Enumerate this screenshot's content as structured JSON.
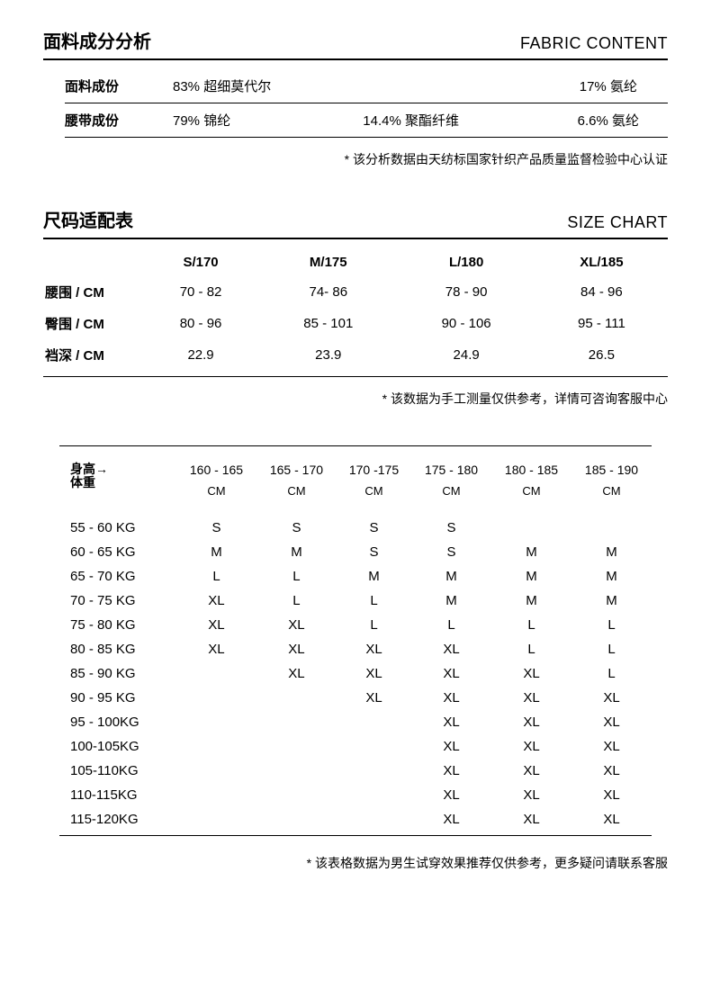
{
  "fabric": {
    "title_cn": "面料成分分析",
    "title_en": "FABRIC CONTENT",
    "rows": [
      {
        "label": "面料成份",
        "c1": "83% 超细莫代尔",
        "c2": "",
        "c3": "17% 氨纶"
      },
      {
        "label": "腰带成份",
        "c1": "79% 锦纶",
        "c2": "14.4% 聚酯纤维",
        "c3": "6.6% 氨纶"
      }
    ],
    "note": "* 该分析数据由天纺标国家针织产品质量监督检验中心认证"
  },
  "sizechart": {
    "title_cn": "尺码适配表",
    "title_en": "SIZE CHART",
    "headers": [
      "S/170",
      "M/175",
      "L/180",
      "XL/185"
    ],
    "rows": [
      {
        "label": "腰围 / CM",
        "vals": [
          "70 - 82",
          "74- 86",
          "78 - 90",
          "84 - 96"
        ]
      },
      {
        "label": "臀围 / CM",
        "vals": [
          "80 - 96",
          "85 - 101",
          "90 - 106",
          "95 - 111"
        ]
      },
      {
        "label": "裆深 / CM",
        "vals": [
          "22.9",
          "23.9",
          "24.9",
          "26.5"
        ]
      }
    ],
    "note": "* 该数据为手工测量仅供参考，详情可咨询客服中心"
  },
  "fit": {
    "corner_top": "身高",
    "corner_bottom": "体重",
    "unit": "CM",
    "heights": [
      "160 - 165",
      "165 - 170",
      "170 -175",
      "175 - 180",
      "180 - 185",
      "185 - 190"
    ],
    "rows": [
      {
        "w": "55 - 60 KG",
        "v": [
          "S",
          "S",
          "S",
          "S",
          "",
          ""
        ]
      },
      {
        "w": "60 - 65 KG",
        "v": [
          "M",
          "M",
          "S",
          "S",
          "M",
          "M"
        ]
      },
      {
        "w": "65 - 70 KG",
        "v": [
          "L",
          "L",
          "M",
          "M",
          "M",
          "M"
        ]
      },
      {
        "w": "70 - 75 KG",
        "v": [
          "XL",
          "L",
          "L",
          "M",
          "M",
          "M"
        ]
      },
      {
        "w": "75 - 80 KG",
        "v": [
          "XL",
          "XL",
          "L",
          "L",
          "L",
          "L"
        ]
      },
      {
        "w": "80 - 85 KG",
        "v": [
          "XL",
          "XL",
          "XL",
          "XL",
          "L",
          "L"
        ]
      },
      {
        "w": "85 - 90 KG",
        "v": [
          "",
          "XL",
          "XL",
          "XL",
          "XL",
          "L"
        ]
      },
      {
        "w": "90 - 95 KG",
        "v": [
          "",
          "",
          "XL",
          "XL",
          "XL",
          "XL"
        ]
      },
      {
        "w": "95 - 100KG",
        "v": [
          "",
          "",
          "",
          "XL",
          "XL",
          "XL"
        ]
      },
      {
        "w": "100-105KG",
        "v": [
          "",
          "",
          "",
          "XL",
          "XL",
          "XL"
        ]
      },
      {
        "w": "105-110KG",
        "v": [
          "",
          "",
          "",
          "XL",
          "XL",
          "XL"
        ]
      },
      {
        "w": "110-115KG",
        "v": [
          "",
          "",
          "",
          "XL",
          "XL",
          "XL"
        ]
      },
      {
        "w": "115-120KG",
        "v": [
          "",
          "",
          "",
          "XL",
          "XL",
          "XL"
        ]
      }
    ],
    "note": "* 该表格数据为男生试穿效果推荐仅供参考，更多疑问请联系客服"
  }
}
